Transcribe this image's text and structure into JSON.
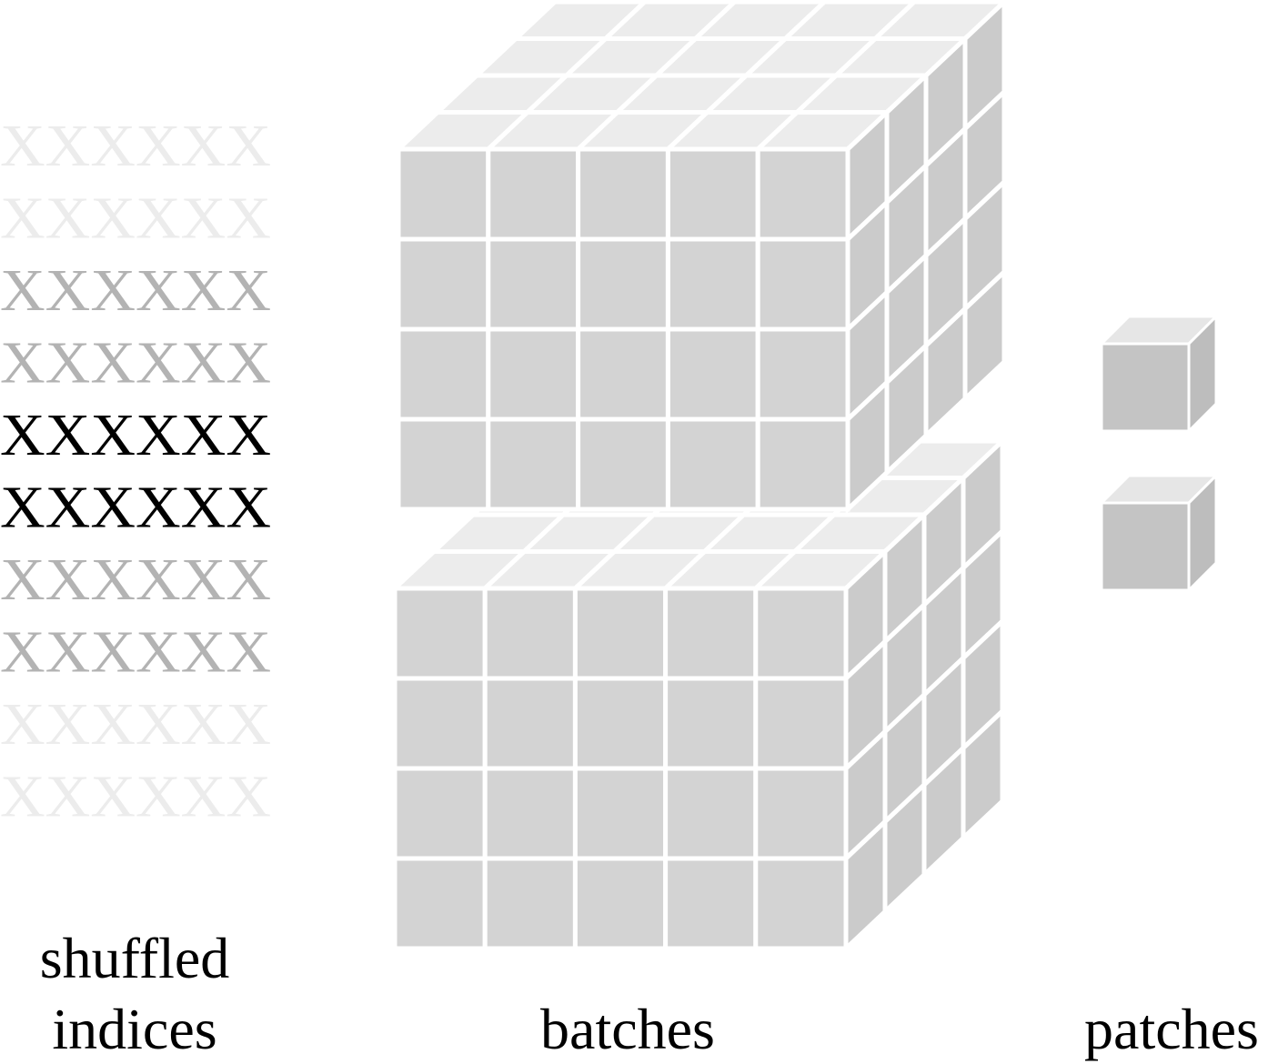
{
  "labels": {
    "shuffled_line1": "shuffled",
    "shuffled_line2": "indices",
    "batches": "batches",
    "patches": "patches"
  },
  "index_rows": [
    {
      "text": "XXXXXX",
      "shade": "faint"
    },
    {
      "text": "XXXXXX",
      "shade": "faint"
    },
    {
      "text": "XXXXXX",
      "shade": "mid"
    },
    {
      "text": "XXXXXX",
      "shade": "mid"
    },
    {
      "text": "XXXXXX",
      "shade": "dark"
    },
    {
      "text": "XXXXXX",
      "shade": "dark"
    },
    {
      "text": "XXXXXX",
      "shade": "mid"
    },
    {
      "text": "XXXXXX",
      "shade": "mid"
    },
    {
      "text": "XXXXXX",
      "shade": "faint"
    },
    {
      "text": "XXXXXX",
      "shade": "faint"
    }
  ],
  "batches": {
    "count": 2,
    "columns": 5,
    "rows": 4,
    "depth": 4
  },
  "patches": {
    "count": 2
  },
  "colors": {
    "front": "#d3d3d3",
    "top": "#ececec",
    "side": "#cbcbcb",
    "grid": "#ffffff",
    "patch_front": "#c4c4c4",
    "patch_top": "#e6e6e6",
    "patch_side": "#bdbdbd",
    "text_faint": "#ececec",
    "text_mid": "#b3b3b3",
    "text_dark": "#000000"
  }
}
